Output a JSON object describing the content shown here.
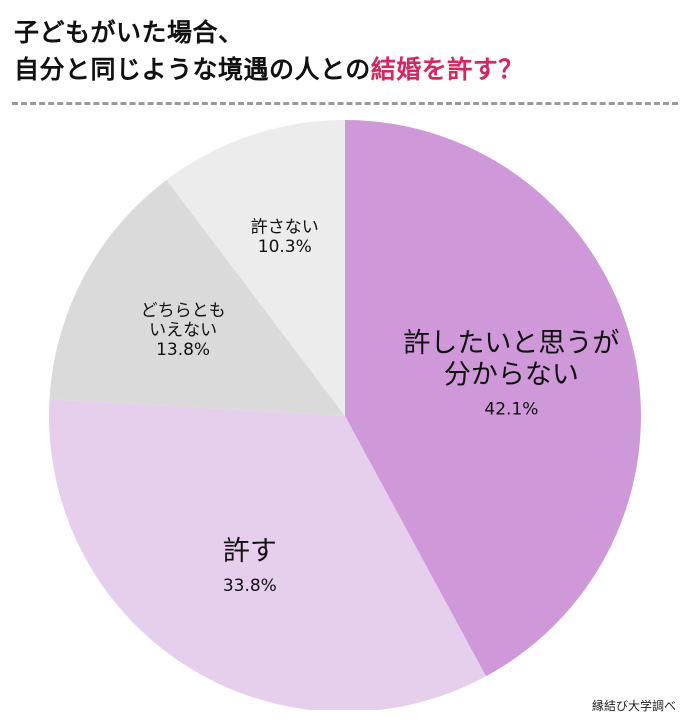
{
  "title": {
    "line1": "子どもがいた場合、",
    "line2_prefix": "自分と同じような境遇の人との",
    "line2_accent": "結婚を許す？"
  },
  "source": "縁結び大学調べ",
  "colors": {
    "accent": "#d9255f"
  },
  "chart_data": {
    "type": "pie",
    "start_angle": "12 o'clock",
    "direction": "clockwise",
    "slices": [
      {
        "label": [
          "許したいと思うが",
          "分からない"
        ],
        "value": 42.1,
        "value_label": "42.1%",
        "color": "#cf98d9"
      },
      {
        "label": [
          "許す"
        ],
        "value": 33.8,
        "value_label": "33.8%",
        "color": "#e6cfec"
      },
      {
        "label": [
          "どちらとも",
          "いえない"
        ],
        "value": 13.8,
        "value_label": "13.8%",
        "color": "#dadada"
      },
      {
        "label": [
          "許さない"
        ],
        "value": 10.3,
        "value_label": "10.3%",
        "color": "#ececec"
      }
    ]
  }
}
